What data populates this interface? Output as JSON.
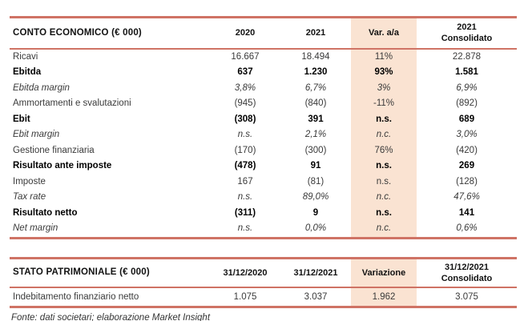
{
  "colors": {
    "accent": "#cf7365",
    "highlight": "#fae3d2"
  },
  "income_table": {
    "title": "CONTO ECONOMICO (€ 000)",
    "col_2020": "2020",
    "col_2021": "2021",
    "col_var": "Var. a/a",
    "col_cons_line1": "2021",
    "col_cons_line2": "Consolidato",
    "rows": [
      {
        "label": "Ricavi",
        "style": "normal",
        "y2020": "16.667",
        "y2021": "18.494",
        "var": "11%",
        "cons": "22.878"
      },
      {
        "label": "Ebitda",
        "style": "bold",
        "y2020": "637",
        "y2021": "1.230",
        "var": "93%",
        "cons": "1.581"
      },
      {
        "label": "Ebitda margin",
        "style": "italic",
        "y2020": "3,8%",
        "y2021": "6,7%",
        "var": "3%",
        "cons": "6,9%"
      },
      {
        "label": "Ammortamenti e svalutazioni",
        "style": "normal",
        "y2020": "(945)",
        "y2021": "(840)",
        "var": "-11%",
        "cons": "(892)"
      },
      {
        "label": "Ebit",
        "style": "bold",
        "y2020": "(308)",
        "y2021": "391",
        "var": "n.s.",
        "cons": "689"
      },
      {
        "label": "Ebit margin",
        "style": "italic",
        "y2020": "n.s.",
        "y2021": "2,1%",
        "var": "n.c.",
        "cons": "3,0%"
      },
      {
        "label": "Gestione finanziaria",
        "style": "normal",
        "y2020": "(170)",
        "y2021": "(300)",
        "var": "76%",
        "cons": "(420)"
      },
      {
        "label": "Risultato ante imposte",
        "style": "bold",
        "y2020": "(478)",
        "y2021": "91",
        "var": "n.s.",
        "cons": "269"
      },
      {
        "label": "Imposte",
        "style": "normal",
        "y2020": "167",
        "y2021": "(81)",
        "var": "n.s.",
        "cons": "(128)"
      },
      {
        "label": "Tax rate",
        "style": "italic",
        "y2020": "n.s.",
        "y2021": "89,0%",
        "var": "n.c.",
        "cons": "47,6%"
      },
      {
        "label": "Risultato netto",
        "style": "bold",
        "y2020": "(311)",
        "y2021": "9",
        "var": "n.s.",
        "cons": "141"
      },
      {
        "label": "Net margin",
        "style": "italic",
        "y2020": "n.s.",
        "y2021": "0,0%",
        "var": "n.c.",
        "cons": "0,6%"
      }
    ]
  },
  "balance_table": {
    "title": "STATO PATRIMONIALE (€ 000)",
    "col_2020": "31/12/2020",
    "col_2021": "31/12/2021",
    "col_var": "Variazione",
    "col_cons_line1": "31/12/2021",
    "col_cons_line2": "Consolidato",
    "rows": [
      {
        "label": "Indebitamento finanziario netto",
        "style": "normal",
        "y2020": "1.075",
        "y2021": "3.037",
        "var": "1.962",
        "cons": "3.075"
      }
    ]
  },
  "footer": {
    "source_note": "Fonte: dati societari; elaborazione Market Insight"
  }
}
